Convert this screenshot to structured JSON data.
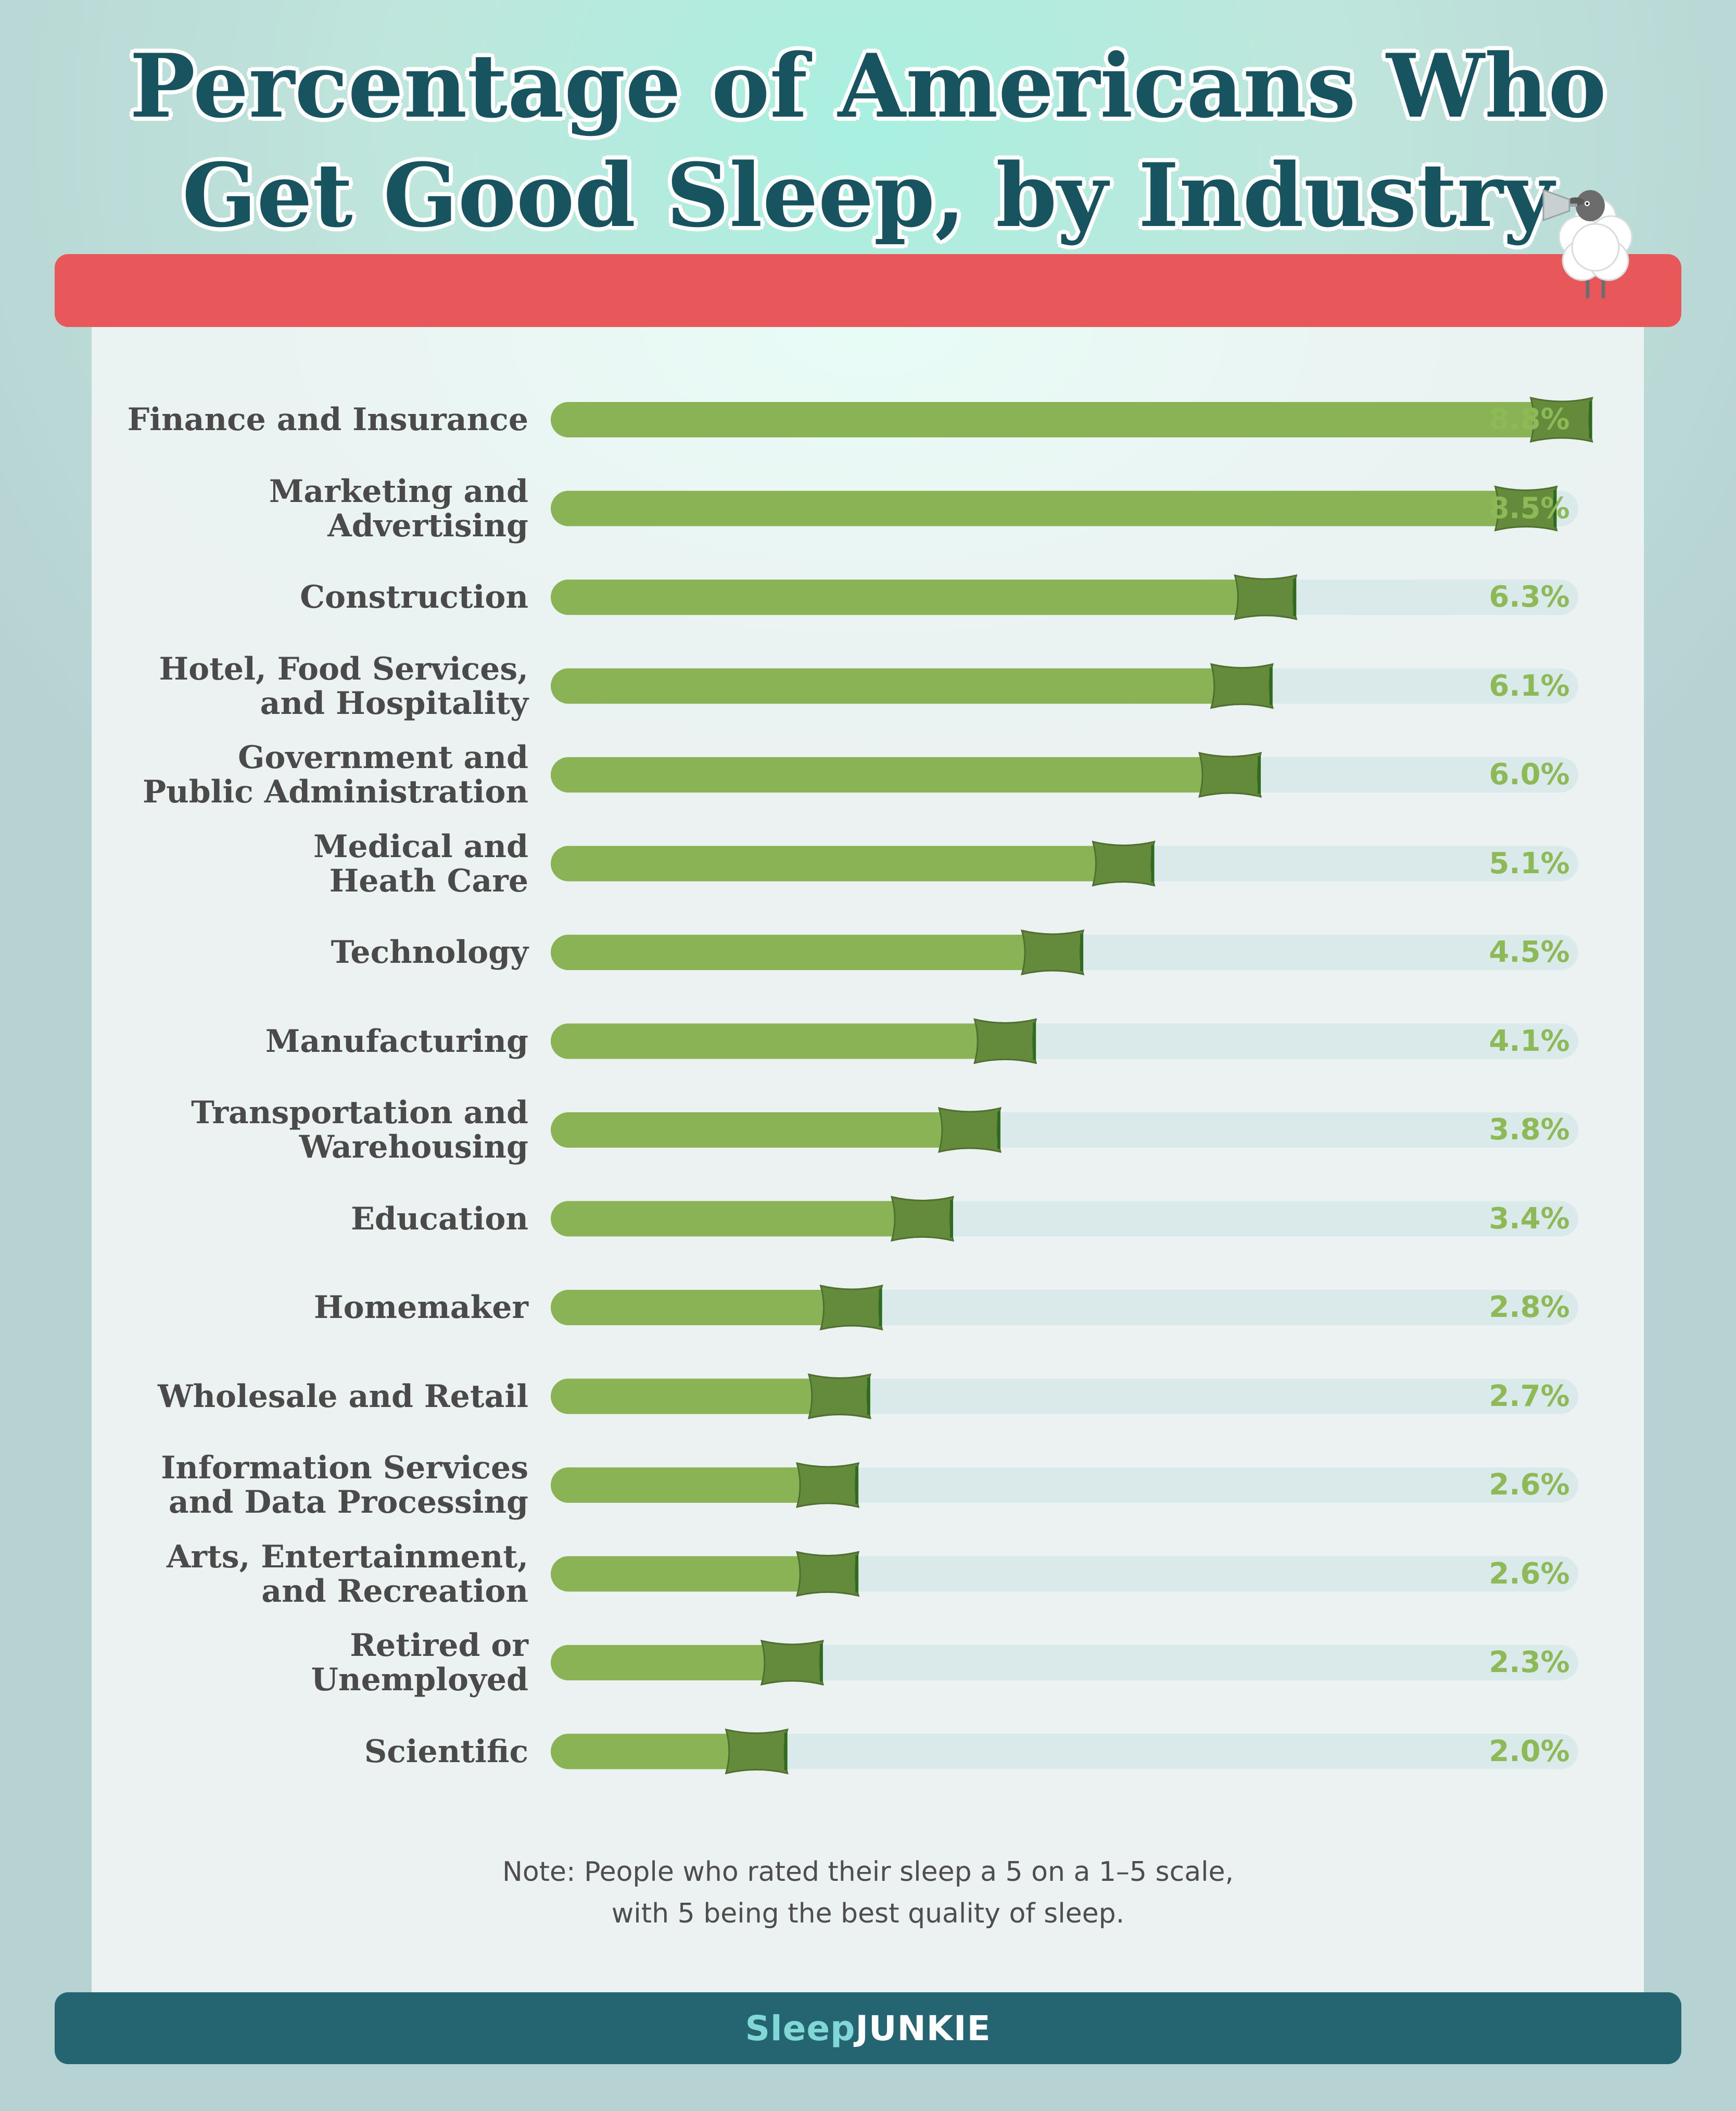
{
  "title": {
    "line1": "Percentage of Americans Who",
    "line2": "Get Good Sleep, by Industry"
  },
  "note": {
    "line1": "Note: People who rated their sleep a 5 on a 1–5 scale,",
    "line2": "with 5 being the best quality of sleep."
  },
  "brand": {
    "part1": "Sleep",
    "part2": "JUNKIE"
  },
  "colors": {
    "bar_fill": "#8ab355",
    "bar_track": "#daeaeb",
    "pillow": "#648a3b",
    "value_text": "#8db956",
    "title_text": "#17545f",
    "red_band": "#e8585a",
    "footer_band": "#256571"
  },
  "icons": {
    "mascot": "sheep-icon",
    "marker": "pillow-icon"
  },
  "chart_data": {
    "type": "bar",
    "orientation": "horizontal",
    "unit": "%",
    "xlim": [
      0,
      10
    ],
    "categories": [
      [
        "Finance and Insurance"
      ],
      [
        "Marketing and",
        "Advertising"
      ],
      [
        "Construction"
      ],
      [
        "Hotel, Food Services,",
        "and Hospitality"
      ],
      [
        "Government and",
        "Public Administration"
      ],
      [
        "Medical and",
        "Heath Care"
      ],
      [
        "Technology"
      ],
      [
        "Manufacturing"
      ],
      [
        "Transportation and",
        "Warehousing"
      ],
      [
        "Education"
      ],
      [
        "Homemaker"
      ],
      [
        "Wholesale and Retail"
      ],
      [
        "Information Services",
        "and Data Processing"
      ],
      [
        "Arts, Entertainment,",
        "and Recreation"
      ],
      [
        "Retired or",
        "Unemployed"
      ],
      [
        "Scientific"
      ]
    ],
    "values": [
      8.8,
      8.5,
      6.3,
      6.1,
      6.0,
      5.1,
      4.5,
      4.1,
      3.8,
      3.4,
      2.8,
      2.7,
      2.6,
      2.6,
      2.3,
      2.0
    ],
    "value_labels": [
      "8.8%",
      "8.5%",
      "6.3%",
      "6.1%",
      "6.0%",
      "5.1%",
      "4.5%",
      "4.1%",
      "3.8%",
      "3.4%",
      "2.8%",
      "2.7%",
      "2.6%",
      "2.6%",
      "2.3%",
      "2.0%"
    ]
  }
}
